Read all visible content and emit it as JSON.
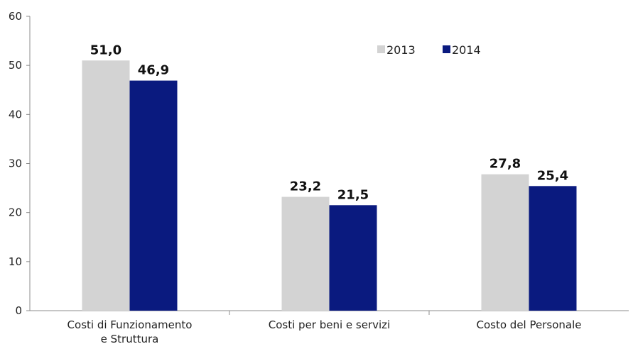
{
  "chart_data": {
    "type": "bar",
    "categories": [
      "Costi di Funzionamento e Struttura",
      "Costi per beni e servizi",
      "Costo del Personale"
    ],
    "category_lines": [
      [
        "Costi di Funzionamento",
        "e Struttura"
      ],
      [
        "Costi per beni e servizi"
      ],
      [
        "Costo del Personale"
      ]
    ],
    "series": [
      {
        "name": "2013",
        "values": [
          51.0,
          23.2,
          27.8
        ],
        "labels": [
          "51,0",
          "23,2",
          "27,8"
        ],
        "color": "#d3d3d3"
      },
      {
        "name": "2014",
        "values": [
          46.9,
          21.5,
          25.4
        ],
        "labels": [
          "46,9",
          "21,5",
          "25,4"
        ],
        "color": "#0a1a7f"
      }
    ],
    "yticks": [
      "0",
      "10",
      "20",
      "30",
      "40",
      "50",
      "60"
    ],
    "ylim": [
      0,
      60
    ],
    "grid": false,
    "legend_position": "top-right"
  }
}
